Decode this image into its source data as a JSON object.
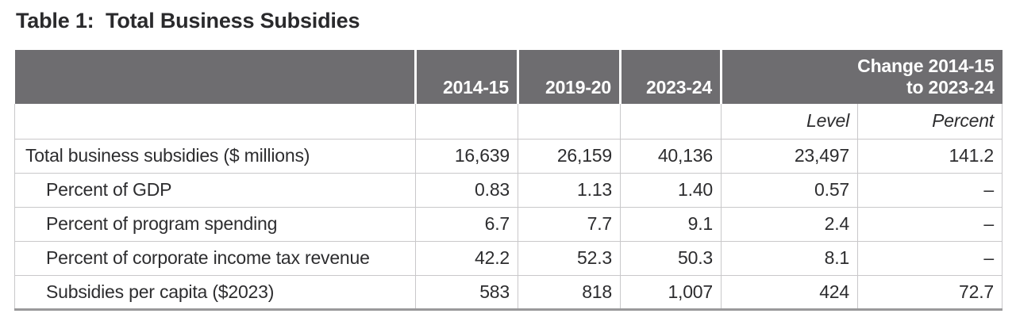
{
  "title": "Table 1:  Total Business Subsidies",
  "colors": {
    "header_bg": "#6E6D70",
    "header_text": "#FFFFFF",
    "grid": "#C9C8CA",
    "bottom_border": "#9A999B",
    "text": "#2D2D2F",
    "page_bg": "#FFFFFF"
  },
  "table": {
    "header": {
      "years": [
        "2014-15",
        "2019-20",
        "2023-24"
      ],
      "change_line1": "Change 2014-15",
      "change_line2": "to 2023-24",
      "sub": {
        "level": "Level",
        "percent": "Percent"
      }
    },
    "rows": [
      {
        "label": "Total business subsidies ($ millions)",
        "indent": false,
        "values": [
          "16,639",
          "26,159",
          "40,136",
          "23,497",
          "141.2"
        ]
      },
      {
        "label": "Percent of GDP",
        "indent": true,
        "values": [
          "0.83",
          "1.13",
          "1.40",
          "0.57",
          "–"
        ]
      },
      {
        "label": "Percent of program spending",
        "indent": true,
        "values": [
          "6.7",
          "7.7",
          "9.1",
          "2.4",
          "–"
        ]
      },
      {
        "label": "Percent of corporate income tax revenue",
        "indent": true,
        "values": [
          "42.2",
          "52.3",
          "50.3",
          "8.1",
          "–"
        ]
      },
      {
        "label": "Subsidies per capita ($2023)",
        "indent": true,
        "values": [
          "583",
          "818",
          "1,007",
          "424",
          "72.7"
        ]
      }
    ]
  }
}
